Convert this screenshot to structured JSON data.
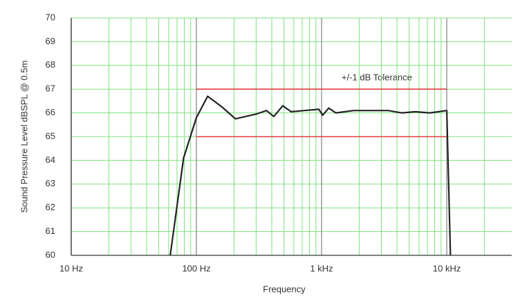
{
  "chart_data": {
    "type": "line",
    "xscale": "log",
    "xlabel": "Frequency",
    "ylabel": "Sound Pressure Level dBSPL @ 0.5m",
    "annotation": "+/-1 dB Tolerance",
    "xlim": [
      10,
      33000
    ],
    "ylim": [
      60,
      70
    ],
    "xticks": [
      {
        "value": 10,
        "label": "10 Hz"
      },
      {
        "value": 100,
        "label": "100 Hz"
      },
      {
        "value": 1000,
        "label": "1 kHz"
      },
      {
        "value": 10000,
        "label": "10 kHz"
      }
    ],
    "xminorgrid": [
      20,
      30,
      40,
      50,
      60,
      70,
      80,
      90,
      200,
      300,
      400,
      500,
      600,
      700,
      800,
      900,
      2000,
      3000,
      4000,
      5000,
      6000,
      7000,
      8000,
      9000,
      20000
    ],
    "yticks": [
      60,
      61,
      62,
      63,
      64,
      65,
      66,
      67,
      68,
      69,
      70
    ],
    "grid": true,
    "grid_color": "#7ee07e",
    "major_grid_color": "#999999",
    "series": [
      {
        "color": "#222222",
        "x": [
          61.8,
          79,
          100,
          123,
          160,
          205,
          300,
          363,
          415,
          490,
          570,
          730,
          950,
          1020,
          1140,
          1300,
          1800,
          3400,
          4370,
          5600,
          7300,
          10000,
          10700
        ],
        "values": [
          60,
          64.1,
          65.8,
          66.7,
          66.25,
          65.75,
          65.95,
          66.1,
          65.85,
          66.3,
          66.05,
          66.1,
          66.15,
          65.9,
          66.2,
          66.0,
          66.1,
          66.1,
          66.0,
          66.05,
          66.0,
          66.1,
          60
        ]
      },
      {
        "color": "#e03c3c",
        "x": [
          100,
          10000
        ],
        "values": [
          67,
          67
        ]
      },
      {
        "color": "#e03c3c",
        "x": [
          100,
          10000
        ],
        "values": [
          65,
          65
        ]
      }
    ]
  }
}
